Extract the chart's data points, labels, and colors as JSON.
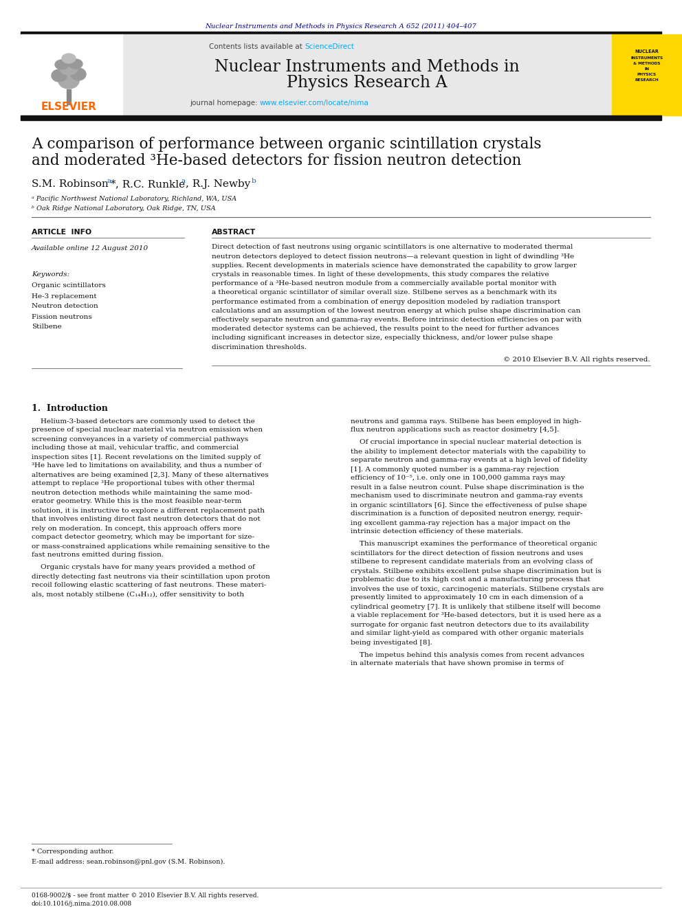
{
  "page_bg": "#ffffff",
  "top_journal_ref": "Nuclear Instruments and Methods in Physics Research A 652 (2011) 404–407",
  "top_journal_ref_color": "#00008B",
  "header_bg": "#e8e8e8",
  "contents_text": "Contents lists available at ",
  "science_direct": "ScienceDirect",
  "science_direct_color": "#00aaff",
  "journal_name_line1": "Nuclear Instruments and Methods in",
  "journal_name_line2": "Physics Research A",
  "journal_homepage_prefix": "journal homepage: ",
  "journal_homepage_url": "www.elsevier.com/locate/nima",
  "journal_homepage_url_color": "#00aaff",
  "article_title_line1": "A comparison of performance between organic scintillation crystals",
  "article_title_line2": "and moderated ³He-based detectors for fission neutron detection",
  "affil_a": "ᵃ Pacific Northwest National Laboratory, Richland, WA, USA",
  "affil_b": "ᵇ Oak Ridge National Laboratory, Oak Ridge, TN, USA",
  "article_info_header": "ARTICLE  INFO",
  "abstract_header": "ABSTRACT",
  "available_online": "Available online 12 August 2010",
  "keywords_header": "Keywords:",
  "keywords": [
    "Organic scintillators",
    "He-3 replacement",
    "Neutron detection",
    "Fission neutrons",
    "Stilbene"
  ],
  "copyright": "© 2010 Elsevier B.V. All rights reserved.",
  "section1_header": "1.  Introduction",
  "footnote_star": "* Corresponding author.",
  "footnote_email": "E-mail address: sean.robinson@pnl.gov (S.M. Robinson).",
  "footer_text1": "0168-9002/$ - see front matter © 2010 Elsevier B.V. All rights reserved.",
  "footer_text2": "doi:10.1016/j.nima.2010.08.008",
  "abstract_lines": [
    "Direct detection of fast neutrons using organic scintillators is one alternative to moderated thermal",
    "neutron detectors deployed to detect fission neutrons—a relevant question in light of dwindling ³He",
    "supplies. Recent developments in materials science have demonstrated the capability to grow larger",
    "crystals in reasonable times. In light of these developments, this study compares the relative",
    "performance of a ³He-based neutron module from a commercially available portal monitor with",
    "a theoretical organic scintillator of similar overall size. Stilbene serves as a benchmark with its",
    "performance estimated from a combination of energy deposition modeled by radiation transport",
    "calculations and an assumption of the lowest neutron energy at which pulse shape discrimination can",
    "effectively separate neutron and gamma-ray events. Before intrinsic detection efficiencies on par with",
    "moderated detector systems can be achieved, the results point to the need for further advances",
    "including significant increases in detector size, especially thickness, and/or lower pulse shape",
    "discrimination thresholds."
  ],
  "col1_lines": [
    "    Helium-3-based detectors are commonly used to detect the",
    "presence of special nuclear material via neutron emission when",
    "screening conveyances in a variety of commercial pathways",
    "including those at mail, vehicular traffic, and commercial",
    "inspection sites [1]. Recent revelations on the limited supply of",
    "³He have led to limitations on availability, and thus a number of",
    "alternatives are being examined [2,3]. Many of these alternatives",
    "attempt to replace ³He proportional tubes with other thermal",
    "neutron detection methods while maintaining the same mod-",
    "erator geometry. While this is the most feasible near-term",
    "solution, it is instructive to explore a different replacement path",
    "that involves enlisting direct fast neutron detectors that do not",
    "rely on moderation. In concept, this approach offers more",
    "compact detector geometry, which may be important for size-",
    "or mass-constrained applications while remaining sensitive to the",
    "fast neutrons emitted during fission."
  ],
  "col1_lines2": [
    "    Organic crystals have for many years provided a method of",
    "directly detecting fast neutrons via their scintillation upon proton",
    "recoil following elastic scattering of fast neutrons. These materi-",
    "als, most notably stilbene (C₁₄H₁₂), offer sensitivity to both"
  ],
  "col2_lines1": [
    "neutrons and gamma rays. Stilbene has been employed in high-",
    "flux neutron applications such as reactor dosimetry [4,5]."
  ],
  "col2_lines2": [
    "    Of crucial importance in special nuclear material detection is",
    "the ability to implement detector materials with the capability to",
    "separate neutron and gamma-ray events at a high level of fidelity",
    "[1]. A commonly quoted number is a gamma-ray rejection",
    "efficiency of 10⁻⁵, i.e. only one in 100,000 gamma rays may",
    "result in a false neutron count. Pulse shape discrimination is the",
    "mechanism used to discriminate neutron and gamma-ray events",
    "in organic scintillators [6]. Since the effectiveness of pulse shape",
    "discrimination is a function of deposited neutron energy, requir-",
    "ing excellent gamma-ray rejection has a major impact on the",
    "intrinsic detection efficiency of these materials."
  ],
  "col2_lines3": [
    "    This manuscript examines the performance of theoretical organic",
    "scintillators for the direct detection of fission neutrons and uses",
    "stilbene to represent candidate materials from an evolving class of",
    "crystals. Stilbene exhibits excellent pulse shape discrimination but is",
    "problematic due to its high cost and a manufacturing process that",
    "involves the use of toxic, carcinogenic materials. Stilbene crystals are",
    "presently limited to approximately 10 cm in each dimension of a",
    "cylindrical geometry [7]. It is unlikely that stilbene itself will become",
    "a viable replacement for ³He-based detectors, but it is used here as a",
    "surrogate for organic fast neutron detectors due to its availability",
    "and similar light-yield as compared with other organic materials",
    "being investigated [8]."
  ],
  "col2_lines4": [
    "    The impetus behind this analysis comes from recent advances",
    "in alternate materials that have shown promise in terms of"
  ]
}
